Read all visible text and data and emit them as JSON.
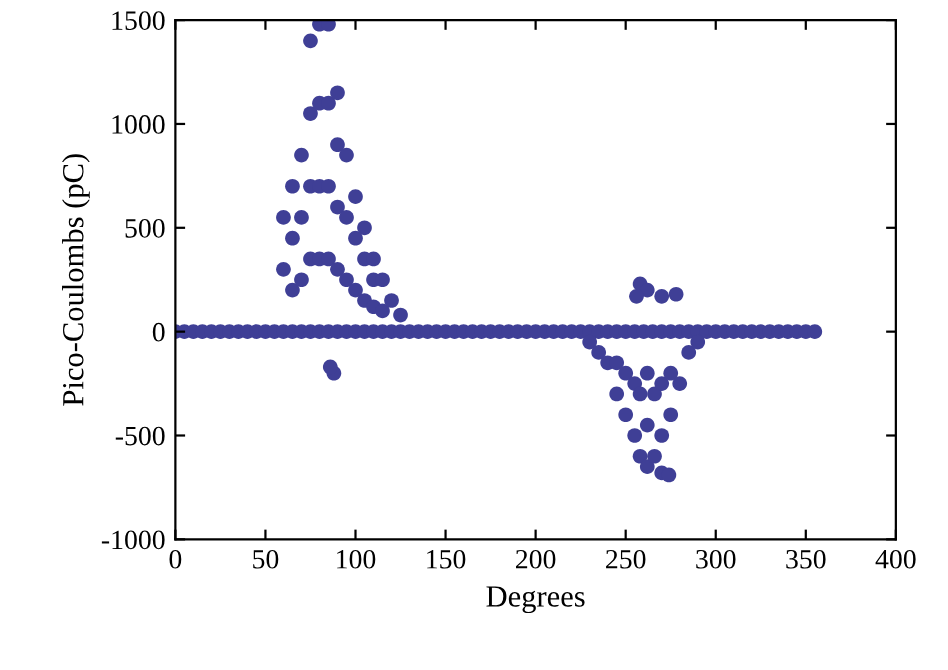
{
  "chart_data": {
    "type": "scatter",
    "xlabel": "Degrees",
    "ylabel": "Pico-Coulombs (pC)",
    "xlim": [
      0,
      400
    ],
    "xticks": [
      0,
      50,
      100,
      150,
      200,
      250,
      300,
      350,
      400
    ],
    "ylim": [
      -1000,
      1500
    ],
    "yticks": [
      -1000,
      -500,
      0,
      500,
      1000,
      1500
    ],
    "grid": false,
    "marker": "circle",
    "series": [
      {
        "color": "#3f3f96",
        "x": [
          0,
          5,
          10,
          15,
          20,
          25,
          30,
          35,
          40,
          45,
          50,
          55,
          60,
          65,
          70,
          75,
          80,
          85,
          90,
          95,
          100,
          105,
          110,
          115,
          120,
          125,
          130,
          135,
          140,
          145,
          150,
          155,
          160,
          165,
          170,
          175,
          180,
          185,
          190,
          195,
          200,
          205,
          210,
          215,
          220,
          225,
          230,
          235,
          240,
          245,
          250,
          255,
          260,
          265,
          270,
          275,
          280,
          285,
          290,
          295,
          300,
          305,
          310,
          315,
          320,
          325,
          330,
          335,
          340,
          345,
          350,
          355,
          60,
          60,
          65,
          65,
          65,
          70,
          70,
          70,
          75,
          75,
          75,
          75,
          80,
          80,
          80,
          80,
          85,
          85,
          85,
          85,
          90,
          90,
          90,
          90,
          95,
          95,
          95,
          100,
          100,
          100,
          105,
          105,
          105,
          110,
          110,
          110,
          115,
          115,
          120,
          125,
          88,
          86,
          230,
          235,
          240,
          245,
          245,
          250,
          250,
          255,
          255,
          258,
          258,
          262,
          262,
          262,
          266,
          266,
          270,
          270,
          275,
          275,
          280,
          285,
          290,
          270,
          274,
          258,
          262,
          256,
          270,
          278
        ],
        "values": [
          0,
          0,
          0,
          0,
          0,
          0,
          0,
          0,
          0,
          0,
          0,
          0,
          0,
          0,
          0,
          0,
          0,
          0,
          0,
          0,
          0,
          0,
          0,
          0,
          0,
          0,
          0,
          0,
          0,
          0,
          0,
          0,
          0,
          0,
          0,
          0,
          0,
          0,
          0,
          0,
          0,
          0,
          0,
          0,
          0,
          0,
          0,
          0,
          0,
          0,
          0,
          0,
          0,
          0,
          0,
          0,
          0,
          0,
          0,
          0,
          0,
          0,
          0,
          0,
          0,
          0,
          0,
          0,
          0,
          0,
          0,
          0,
          300,
          550,
          200,
          450,
          700,
          250,
          550,
          850,
          350,
          700,
          1050,
          1400,
          350,
          700,
          1100,
          1480,
          350,
          700,
          1100,
          1480,
          300,
          600,
          900,
          1150,
          250,
          550,
          850,
          200,
          450,
          650,
          150,
          350,
          500,
          120,
          250,
          350,
          100,
          250,
          150,
          80,
          -200,
          -170,
          -50,
          -100,
          -150,
          -150,
          -300,
          -200,
          -400,
          -250,
          -500,
          -300,
          -600,
          -200,
          -450,
          -650,
          -300,
          -600,
          -250,
          -500,
          -200,
          -400,
          -250,
          -100,
          -50,
          -680,
          -690,
          230,
          200,
          170,
          170,
          180
        ]
      }
    ]
  }
}
